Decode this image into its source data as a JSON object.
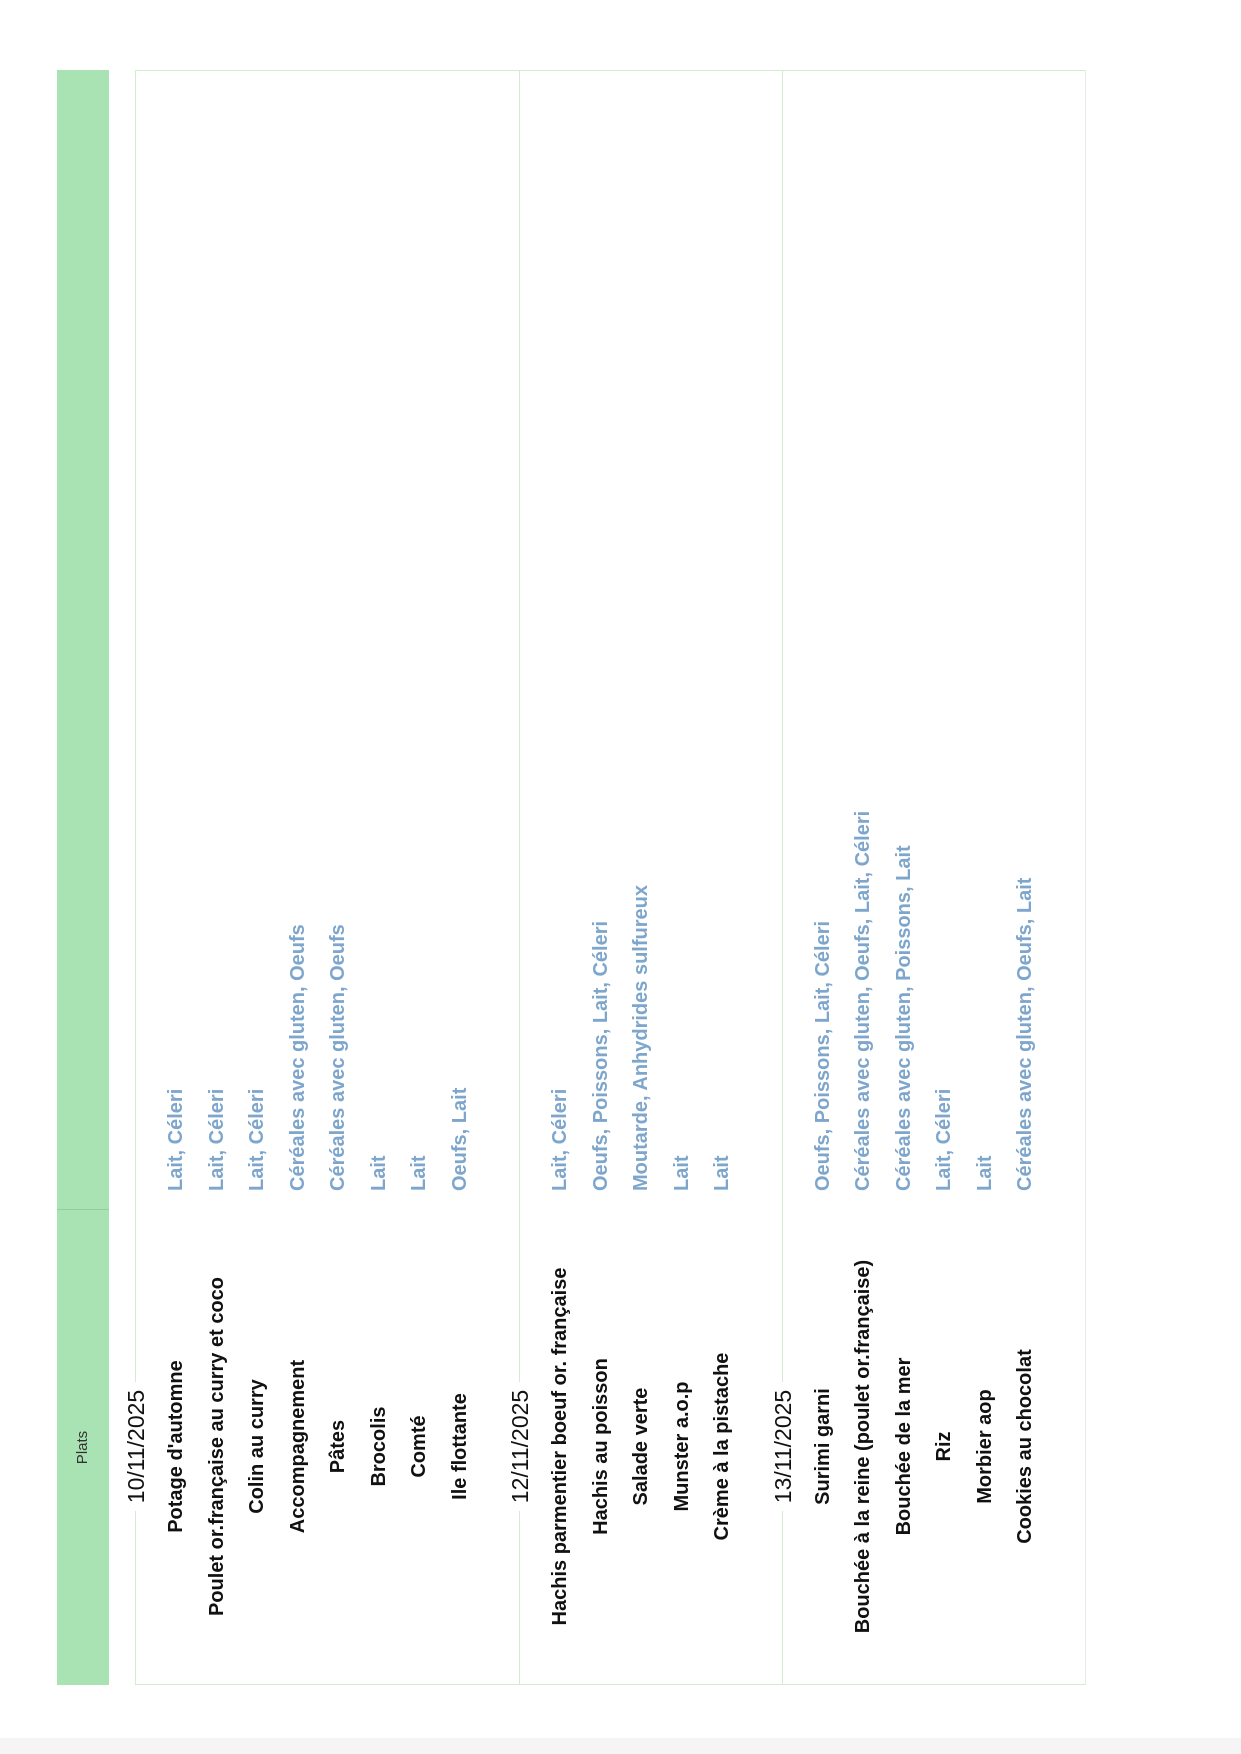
{
  "header": {
    "plats": "Plats"
  },
  "colors": {
    "header_bg": "#a9e2b3",
    "allergen_text": "#7ea6cc"
  },
  "groups": [
    {
      "date": "10/11/2025",
      "items": [
        {
          "dish": "Potage d'automne",
          "allergens": "Lait, Céleri"
        },
        {
          "dish": "Poulet or.française au curry et coco",
          "allergens": "Lait, Céleri"
        },
        {
          "dish": "Colin au curry",
          "allergens": "Lait, Céleri"
        },
        {
          "dish": "Accompagnement",
          "allergens": "Céréales avec gluten, Oeufs"
        },
        {
          "dish": "Pâtes",
          "allergens": "Céréales avec gluten, Oeufs"
        },
        {
          "dish": "Brocolis",
          "allergens": "Lait"
        },
        {
          "dish": "Comté",
          "allergens": "Lait"
        },
        {
          "dish": "Ile flottante",
          "allergens": "Oeufs, Lait"
        }
      ]
    },
    {
      "date": "12/11/2025",
      "items": [
        {
          "dish": "Hachis parmentier boeuf or. française",
          "allergens": "Lait, Céleri"
        },
        {
          "dish": "Hachis au poisson",
          "allergens": "Oeufs, Poissons, Lait, Céleri"
        },
        {
          "dish": "Salade verte",
          "allergens": "Moutarde, Anhydrides sulfureux"
        },
        {
          "dish": "Munster a.o.p",
          "allergens": "Lait"
        },
        {
          "dish": "Crème à la pistache",
          "allergens": "Lait"
        }
      ]
    },
    {
      "date": "13/11/2025",
      "items": [
        {
          "dish": "Surimi garni",
          "allergens": "Oeufs, Poissons, Lait, Céleri"
        },
        {
          "dish": "Bouchée à la reine (poulet or.française)",
          "allergens": "Céréales avec gluten, Oeufs, Lait, Céleri"
        },
        {
          "dish": "Bouchée de la mer",
          "allergens": "Céréales avec gluten, Poissons, Lait"
        },
        {
          "dish": "Riz",
          "allergens": "Lait, Céleri"
        },
        {
          "dish": "Morbier aop",
          "allergens": "Lait"
        },
        {
          "dish": "Cookies au chocolat",
          "allergens": "Céréales avec gluten, Oeufs, Lait"
        }
      ]
    }
  ]
}
